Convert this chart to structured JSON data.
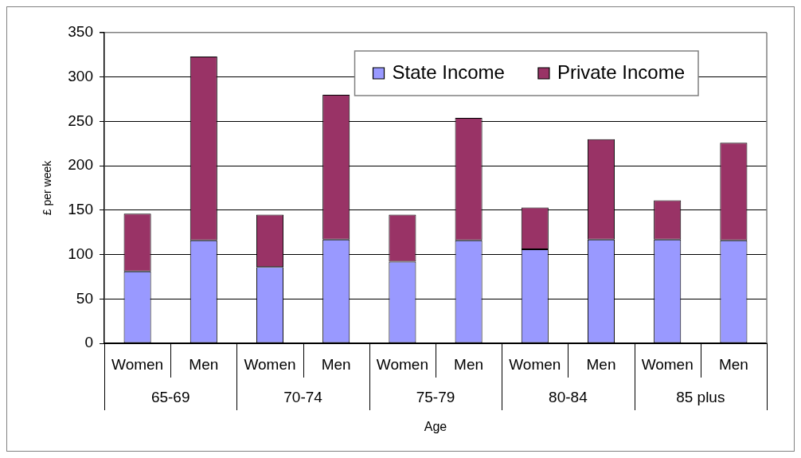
{
  "chart_data": {
    "type": "bar",
    "stacked": true,
    "categories": [
      "Women",
      "Men",
      "Women",
      "Men",
      "Women",
      "Men",
      "Women",
      "Men",
      "Women",
      "Men"
    ],
    "series": [
      {
        "name": "State Income",
        "color": "#9999ff",
        "values": [
          81,
          116,
          86,
          117,
          92,
          116,
          106,
          117,
          117,
          116
        ]
      },
      {
        "name": "Private Income",
        "color": "#993366",
        "values": [
          65,
          207,
          59,
          163,
          53,
          138,
          47,
          113,
          44,
          110
        ]
      }
    ],
    "xlabel": "Age",
    "ylabel": "£ per week",
    "ylim": [
      0,
      350
    ],
    "yticks": [
      0,
      50,
      100,
      150,
      200,
      250,
      300,
      350
    ],
    "grid": "y",
    "legend": "top right",
    "annotations": [
      "65-69",
      "70-74",
      "75-79",
      "80-84",
      "85 plus"
    ]
  }
}
